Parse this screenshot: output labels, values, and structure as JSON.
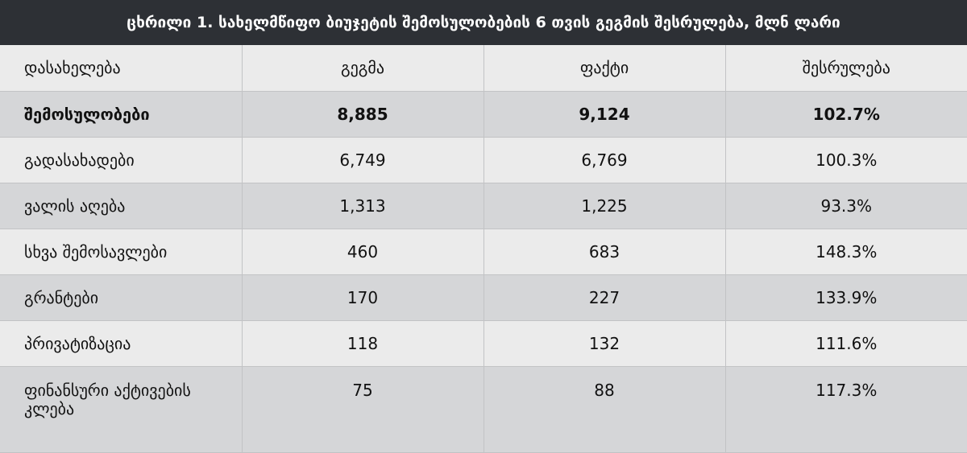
{
  "title": "ცხრილი 1. სახელმწიფო ბიუჯეტის შემოსულობების 6 თვის გეგმის შესრულება, მლნ ლარი",
  "table": {
    "header": [
      "დასახელება",
      "გეგმა",
      "ფაქტი",
      "შესრულება"
    ],
    "rows": [
      [
        "შემოსულობები",
        "8,885",
        "9,124",
        "102.7%"
      ],
      [
        "გადასახადები",
        "6,749",
        "6,769",
        "100.3%"
      ],
      [
        "ვალის აღება",
        "1,313",
        "1,225",
        "93.3%"
      ],
      [
        "სხვა შემოსავლები",
        "460",
        "683",
        "148.3%"
      ],
      [
        "გრანტები",
        "170",
        "227",
        "133.9%"
      ],
      [
        "პრივატიზაცია",
        "118",
        "132",
        "111.6%"
      ],
      [
        "ფინანსური აქტივების კლება",
        "75",
        "88",
        "117.3%"
      ]
    ]
  }
}
